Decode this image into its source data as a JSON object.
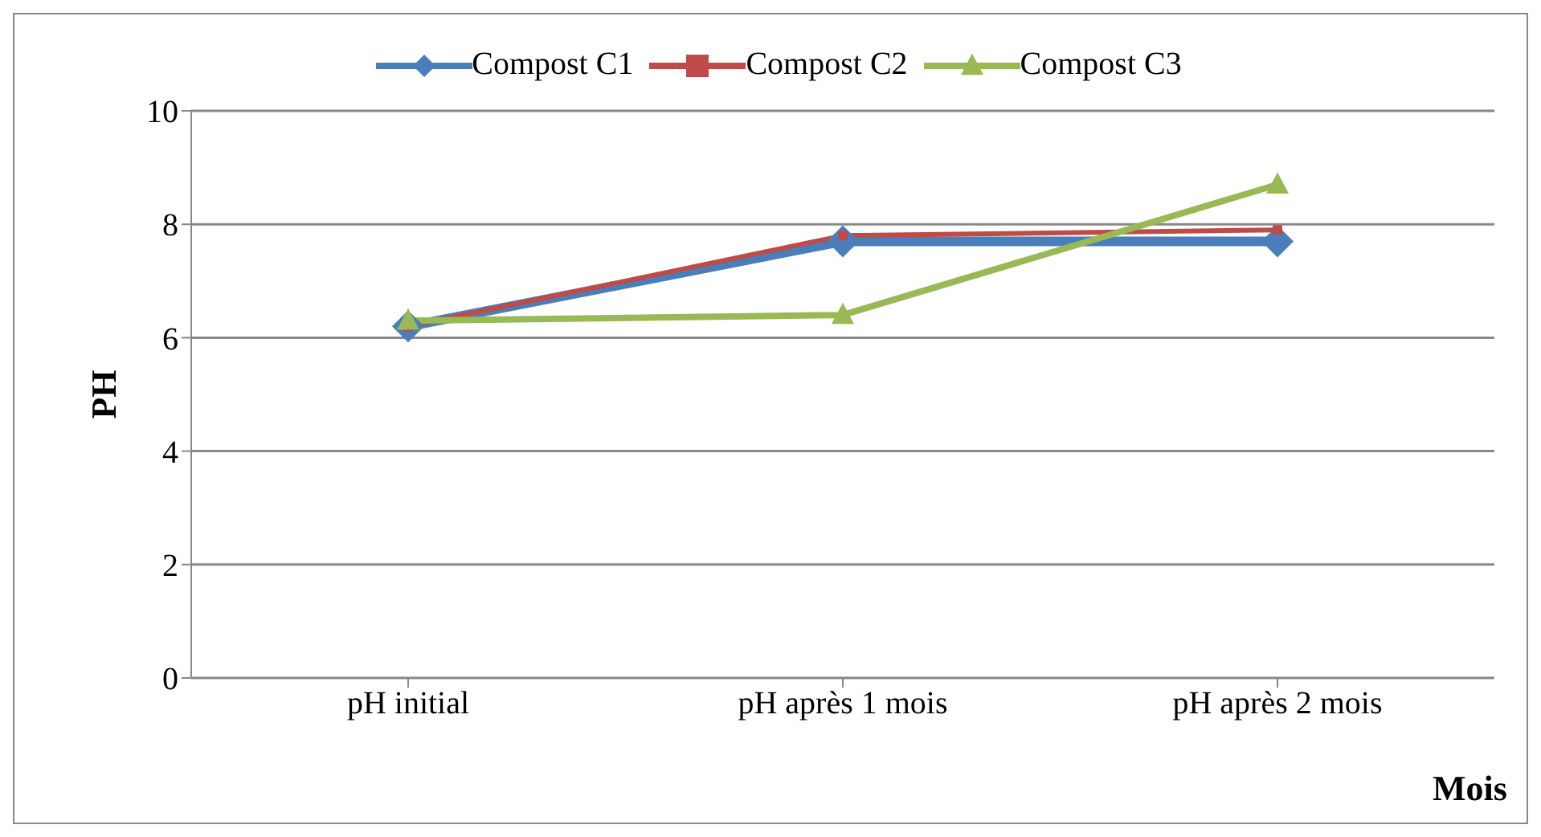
{
  "chart_data": {
    "type": "line",
    "ylabel": "PH",
    "xlabel": "Mois",
    "categories": [
      "pH initial",
      "pH après 1 mois",
      "pH après 2 mois"
    ],
    "series": [
      {
        "name": "Compost C1",
        "color": "#4a7ebb",
        "values": [
          6.2,
          7.7,
          7.7
        ],
        "marker": "diamond"
      },
      {
        "name": "Compost C2",
        "color": "#be4b48",
        "values": [
          6.2,
          7.8,
          7.9
        ],
        "marker": "square"
      },
      {
        "name": "Compost C3",
        "color": "#98b954",
        "values": [
          6.3,
          6.4,
          8.7
        ],
        "marker": "triangle"
      }
    ],
    "ylim": [
      0,
      10
    ],
    "yticks": [
      0,
      2,
      4,
      6,
      8,
      10
    ],
    "grid": "y",
    "legend": "top"
  }
}
